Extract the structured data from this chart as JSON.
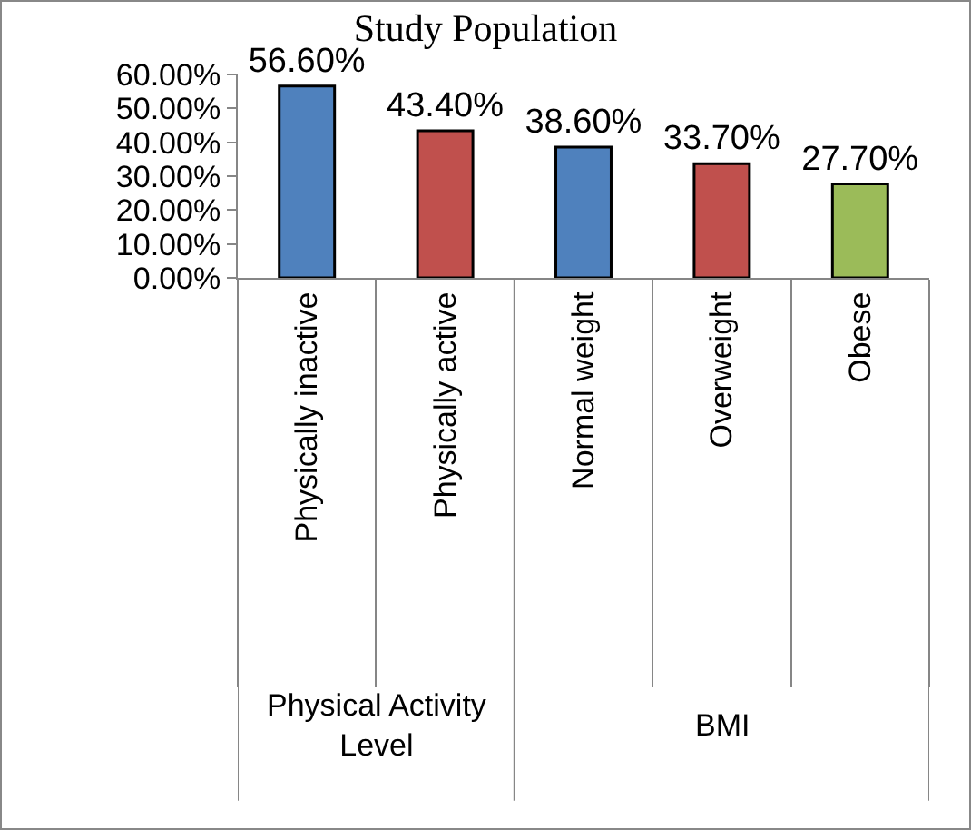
{
  "chart_data": {
    "type": "bar",
    "title": "Study Population",
    "categories": [
      "Physically inactive",
      "Physically active",
      "Normal weight",
      "Overweight",
      "Obese"
    ],
    "values": [
      56.6,
      43.4,
      38.6,
      33.7,
      27.7
    ],
    "colors": [
      "#4f81bd",
      "#c0504d",
      "#4f81bd",
      "#c0504d",
      "#9bbb59"
    ],
    "value_labels": [
      "56.60%",
      "43.40%",
      "38.60%",
      "33.70%",
      "27.70%"
    ],
    "ylim": [
      0,
      60
    ],
    "yticks": [
      {
        "value": 0,
        "label": "0.00%"
      },
      {
        "value": 10,
        "label": "10.00%"
      },
      {
        "value": 20,
        "label": "20.00%"
      },
      {
        "value": 30,
        "label": "30.00%"
      },
      {
        "value": 40,
        "label": "40.00%"
      },
      {
        "value": 50,
        "label": "50.00%"
      },
      {
        "value": 60,
        "label": "60.00%"
      }
    ],
    "annotations": [
      "Physical Activity Level",
      "BMI"
    ],
    "grid": false,
    "legend": false
  }
}
